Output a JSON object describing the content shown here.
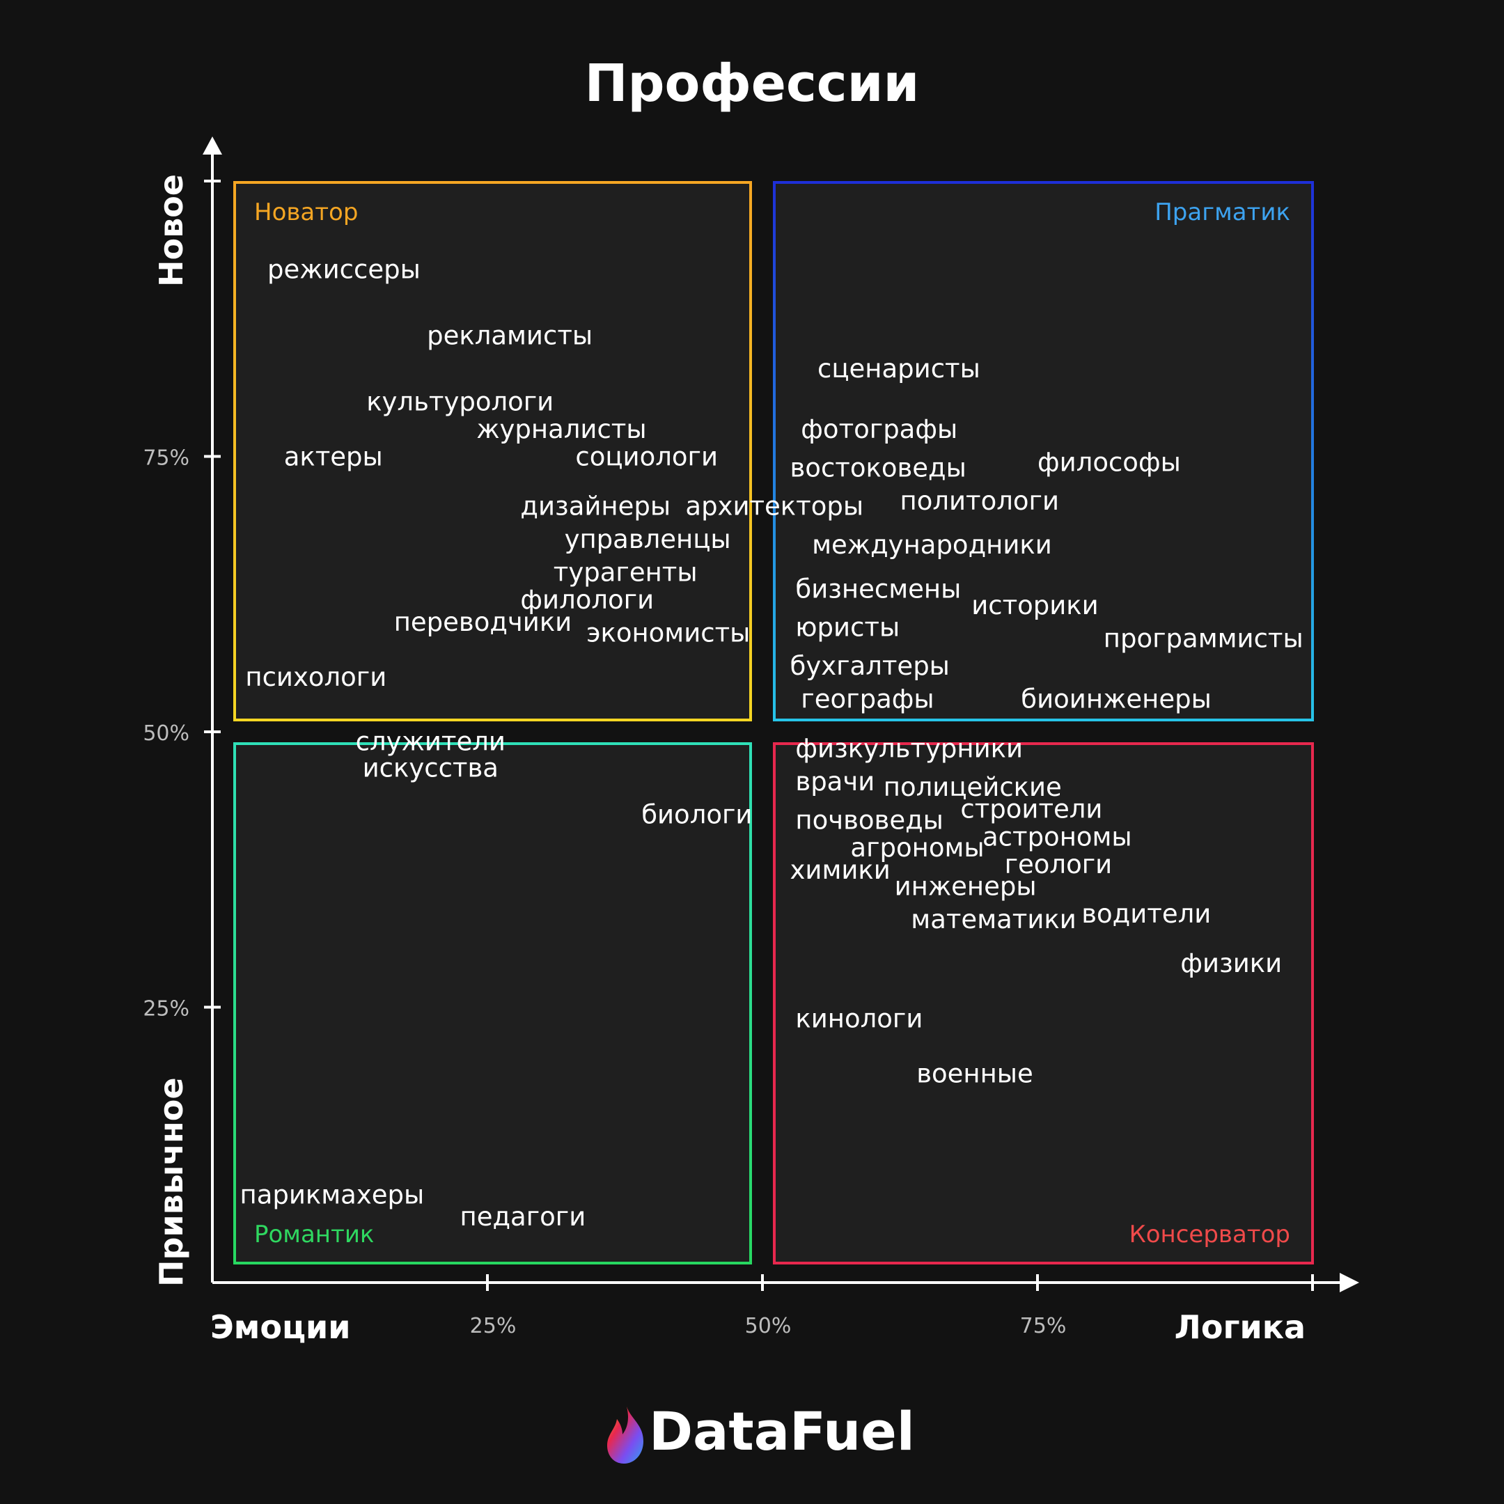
{
  "chart_data": {
    "type": "scatter",
    "title": "Профессии",
    "x_axis": {
      "min": 0,
      "max": 100,
      "start_label": "Эмоции",
      "end_label": "Логика",
      "ticks": [
        {
          "value": 25,
          "label": "25%"
        },
        {
          "value": 50,
          "label": "50%"
        },
        {
          "value": 75,
          "label": "75%"
        }
      ]
    },
    "y_axis": {
      "min": 0,
      "max": 100,
      "start_label": "Привычное",
      "end_label": "Новое",
      "ticks": [
        {
          "value": 25,
          "label": "25%"
        },
        {
          "value": 50,
          "label": "50%"
        },
        {
          "value": 75,
          "label": "75%"
        }
      ]
    },
    "quadrants": [
      {
        "label": "Новатор",
        "color": "#f5a623",
        "color_end": "#f5d623",
        "x_range": [
          0,
          50
        ],
        "y_range": [
          50,
          100
        ],
        "label_corner": "top-left"
      },
      {
        "label": "Прагматик",
        "color": "#1e2fd8",
        "color_end": "#27c4e8",
        "label_color": "#3da3f0",
        "x_range": [
          50,
          100
        ],
        "y_range": [
          50,
          100
        ],
        "label_corner": "top-right"
      },
      {
        "label": "Романтик",
        "color": "#2fe0b8",
        "color_end": "#27d860",
        "label_color": "#2fd860",
        "x_range": [
          0,
          50
        ],
        "y_range": [
          0,
          50
        ],
        "label_corner": "bottom-left"
      },
      {
        "label": "Консерватор",
        "color": "#e8284e",
        "color_end": "#e8284e",
        "label_color": "#f04a4a",
        "x_range": [
          50,
          100
        ],
        "y_range": [
          0,
          50
        ],
        "label_corner": "bottom-right"
      }
    ],
    "points": [
      {
        "label": "режиссеры",
        "x": 5,
        "y": 92
      },
      {
        "label": "рекламисты",
        "x": 19.5,
        "y": 86
      },
      {
        "label": "культурологи",
        "x": 14,
        "y": 80
      },
      {
        "label": "журналисты",
        "x": 24,
        "y": 77.5
      },
      {
        "label": "актеры",
        "x": 6.5,
        "y": 75
      },
      {
        "label": "социологи",
        "x": 33,
        "y": 75
      },
      {
        "label": "дизайнеры",
        "x": 28,
        "y": 70.5
      },
      {
        "label": "архитекторы",
        "x": 43,
        "y": 70.5
      },
      {
        "label": "управленцы",
        "x": 32,
        "y": 67.5
      },
      {
        "label": "турагенты",
        "x": 31,
        "y": 64.5
      },
      {
        "label": "филологи",
        "x": 28,
        "y": 62
      },
      {
        "label": "переводчики",
        "x": 16.5,
        "y": 60
      },
      {
        "label": "экономисты",
        "x": 34,
        "y": 59
      },
      {
        "label": "психологи",
        "x": 3,
        "y": 55
      },
      {
        "label": "сценаристы",
        "x": 55,
        "y": 83
      },
      {
        "label": "фотографы",
        "x": 53.5,
        "y": 77.5
      },
      {
        "label": "востоковеды",
        "x": 52.5,
        "y": 74
      },
      {
        "label": "философы",
        "x": 75,
        "y": 74.5
      },
      {
        "label": "политологи",
        "x": 62.5,
        "y": 71
      },
      {
        "label": "международники",
        "x": 54.5,
        "y": 67
      },
      {
        "label": "бизнесмены",
        "x": 53,
        "y": 63
      },
      {
        "label": "историки",
        "x": 69,
        "y": 61.5
      },
      {
        "label": "юристы",
        "x": 53,
        "y": 59.5
      },
      {
        "label": "программисты",
        "x": 81,
        "y": 58.5
      },
      {
        "label": "бухгалтеры",
        "x": 52.5,
        "y": 56
      },
      {
        "label": "географы",
        "x": 53.5,
        "y": 53
      },
      {
        "label": "биоинженеры",
        "x": 73.5,
        "y": 53
      },
      {
        "label": "служители искусства",
        "x": 13.5,
        "y": 48
      },
      {
        "label": "биологи",
        "x": 39,
        "y": 42.5
      },
      {
        "label": "парикмахеры",
        "x": 2.5,
        "y": 8
      },
      {
        "label": "педагоги",
        "x": 22.5,
        "y": 6
      },
      {
        "label": "физкультурники",
        "x": 53,
        "y": 48.5
      },
      {
        "label": "врачи",
        "x": 53,
        "y": 45.5
      },
      {
        "label": "полицейские",
        "x": 61,
        "y": 45
      },
      {
        "label": "почвоведы",
        "x": 53,
        "y": 42
      },
      {
        "label": "строители",
        "x": 68,
        "y": 43
      },
      {
        "label": "агрономы",
        "x": 58,
        "y": 39.5
      },
      {
        "label": "астрономы",
        "x": 70,
        "y": 40.5
      },
      {
        "label": "химики",
        "x": 52.5,
        "y": 37.5
      },
      {
        "label": "геологи",
        "x": 72,
        "y": 38
      },
      {
        "label": "инженеры",
        "x": 62,
        "y": 36
      },
      {
        "label": "математики",
        "x": 63.5,
        "y": 33
      },
      {
        "label": "водители",
        "x": 79,
        "y": 33.5
      },
      {
        "label": "физики",
        "x": 88,
        "y": 29
      },
      {
        "label": "кинологи",
        "x": 53,
        "y": 24
      },
      {
        "label": "военные",
        "x": 64,
        "y": 19
      }
    ]
  },
  "brand": {
    "name": "DataFuel",
    "logo_icon": "flame-icon",
    "logo_colors": [
      "#f5a623",
      "#e8284e",
      "#7b4df0",
      "#2fa0f0"
    ]
  }
}
